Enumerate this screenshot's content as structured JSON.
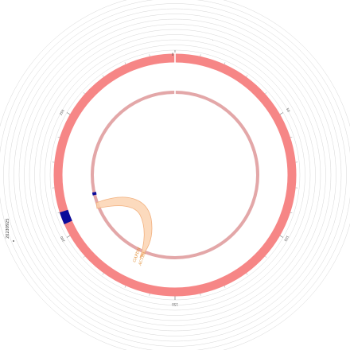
{
  "colors": {
    "background": "#ffffff",
    "outer_track": "#f68686",
    "inner_track": "#e3a7a8",
    "highlight": "#0b0b9a",
    "ribbon_fill": "#fbd3b1",
    "ribbon_stroke": "#f2b07e",
    "gene_text": "#e08a2c",
    "guide_rings": "#d7d7d7"
  },
  "scale_labels": [
    "0",
    "50",
    "100",
    "150",
    "200",
    "250"
  ],
  "side_label": "20230925",
  "corner_mark": "·",
  "gene_labels": [
    "GAPDH",
    "ACTB2"
  ],
  "highlight_segments": [
    {
      "track": "outer",
      "start_deg": 246,
      "end_deg": 252
    },
    {
      "track": "inner",
      "start_deg": 256,
      "end_deg": 258
    }
  ]
}
